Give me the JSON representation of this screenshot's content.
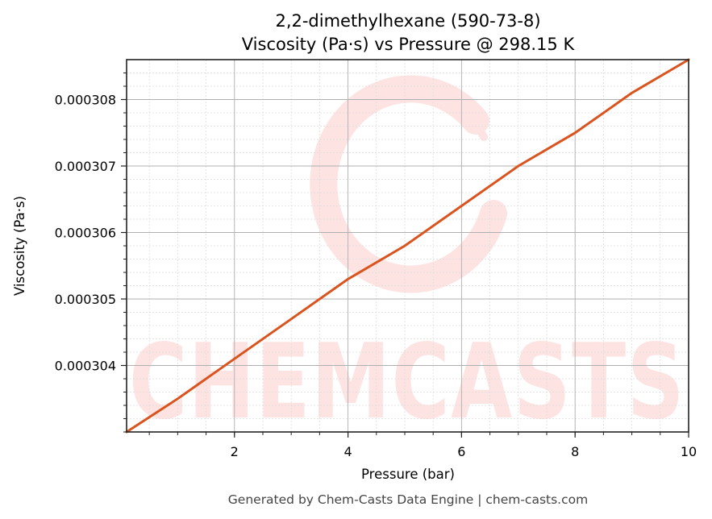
{
  "title_line1": "2,2-dimethylhexane (590-73-8)",
  "title_line2": "Viscosity (Pa·s) vs Pressure @ 298.15 K",
  "footer": "Generated by Chem-Casts Data Engine | chem-casts.com",
  "watermark": "CHEMCASTS",
  "colors": {
    "line": "#d9541e",
    "watermark": "#fde3e1",
    "grid_major": "#b0b0b0",
    "grid_minor": "#dddddd"
  },
  "chart_data": {
    "type": "line",
    "title": "2,2-dimethylhexane (590-73-8)\nViscosity (Pa·s) vs Pressure @ 298.15 K",
    "xlabel": "Pressure (bar)",
    "ylabel": "Viscosity (Pa·s)",
    "xlim": [
      0.1,
      10
    ],
    "ylim": [
      0.000303,
      0.0003086
    ],
    "x_ticks": [
      2,
      4,
      6,
      8,
      10
    ],
    "x_tick_labels": [
      "2",
      "4",
      "6",
      "8",
      "10"
    ],
    "y_ticks": [
      0.000304,
      0.000305,
      0.000306,
      0.000307,
      0.000308
    ],
    "y_tick_labels": [
      "0.000304",
      "0.000305",
      "0.000306",
      "0.000307",
      "0.000308"
    ],
    "grid": true,
    "legend": null,
    "series": [
      {
        "name": "Viscosity",
        "x": [
          0.1,
          1,
          2,
          3,
          4,
          5,
          6,
          7,
          8,
          9,
          10
        ],
        "values": [
          0.000303,
          0.0003035,
          0.0003041,
          0.0003047,
          0.0003053,
          0.0003058,
          0.0003064,
          0.000307,
          0.0003075,
          0.0003081,
          0.0003086
        ]
      }
    ]
  }
}
